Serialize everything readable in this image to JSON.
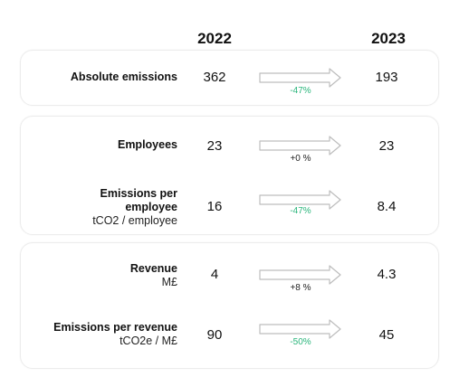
{
  "header": {
    "year_a": "2022",
    "year_b": "2023"
  },
  "colors": {
    "decrease": "#2ab57b",
    "neutral": "#222222",
    "arrow": "#bdbdbd"
  },
  "rows": [
    {
      "label": "Absolute emissions",
      "unit": "",
      "value_a": "362",
      "value_b": "193",
      "change": "-47%",
      "change_type": "decrease"
    },
    {
      "label": "Employees",
      "unit": "",
      "value_a": "23",
      "value_b": "23",
      "change": "+0 %",
      "change_type": "neutral"
    },
    {
      "label": "Emissions per employee",
      "unit": "tCO2 / employee",
      "value_a": "16",
      "value_b": "8.4",
      "change": "-47%",
      "change_type": "decrease"
    },
    {
      "label": "Revenue",
      "unit": "M£",
      "value_a": "4",
      "value_b": "4.3",
      "change": "+8 %",
      "change_type": "neutral"
    },
    {
      "label": "Emissions per revenue",
      "unit": "tCO2e / M£",
      "value_a": "90",
      "value_b": "45",
      "change": "-50%",
      "change_type": "decrease"
    }
  ]
}
